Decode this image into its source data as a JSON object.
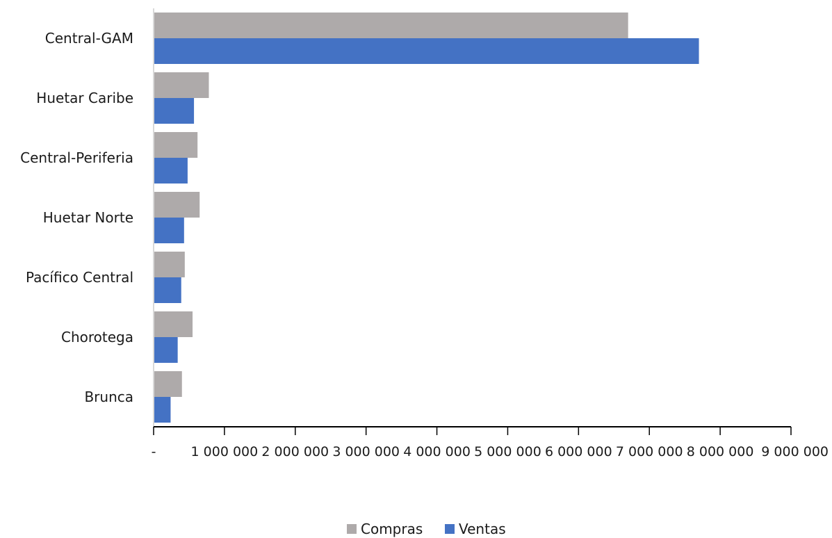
{
  "chart_data": {
    "type": "bar",
    "orientation": "horizontal",
    "categories": [
      "Central-GAM",
      "Huetar Caribe",
      "Central-Periferia",
      "Huetar Norte",
      "Pacífico Central",
      "Chorotega",
      "Brunca"
    ],
    "series": [
      {
        "name": "Compras",
        "color": "#aeaaaa",
        "values": [
          6700000,
          780000,
          620000,
          650000,
          440000,
          550000,
          400000
        ]
      },
      {
        "name": "Ventas",
        "color": "#4472c4",
        "values": [
          7700000,
          570000,
          480000,
          430000,
          390000,
          340000,
          240000
        ]
      }
    ],
    "x_ticks": [
      "-",
      "1 000 000",
      "2 000 000",
      "3 000 000",
      "4 000 000",
      "5 000 000",
      "6 000 000",
      "7 000 000",
      "8 000 000",
      "9 000 000"
    ],
    "xlim": [
      0,
      9000000
    ],
    "legend_position": "bottom"
  }
}
